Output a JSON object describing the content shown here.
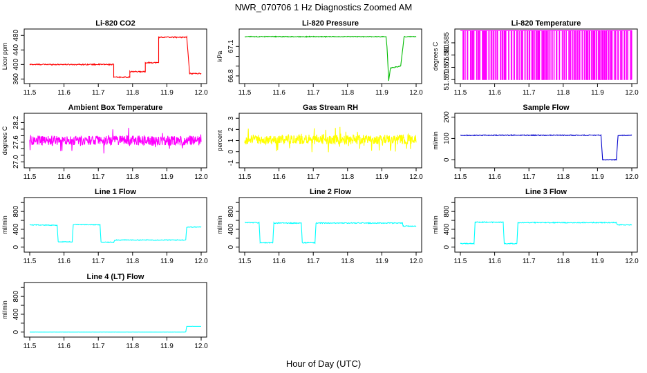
{
  "figure": {
    "title": "NWR_070706  1 Hz Diagnostics Zoomed AM",
    "xlabel": "Hour of Day (UTC)"
  },
  "chart_data": [
    {
      "type": "line",
      "title": "Li-820 CO2",
      "ylabel": "Licor ppm",
      "color": "#ff0000",
      "xlim": [
        11.5,
        12.0
      ],
      "xticks": [
        11.5,
        11.6,
        11.7,
        11.8,
        11.9,
        12.0
      ],
      "ylim": [
        355,
        490
      ],
      "yticks": [
        360,
        400,
        440,
        480
      ],
      "series": [
        {
          "x": [
            11.5,
            11.745,
            11.745,
            11.792,
            11.792,
            11.837,
            11.837,
            11.876,
            11.876,
            11.958,
            11.958,
            11.966,
            11.966,
            12.0
          ],
          "y": [
            400,
            400,
            365,
            365,
            380,
            380,
            405,
            405,
            475,
            475,
            475,
            380,
            375,
            375
          ],
          "noise": 1.5
        }
      ]
    },
    {
      "type": "line",
      "title": "Li-820 Pressure",
      "ylabel": "kPa",
      "color": "#00bb00",
      "xlim": [
        11.5,
        12.0
      ],
      "xticks": [
        11.5,
        11.6,
        11.7,
        11.8,
        11.9,
        12.0
      ],
      "ylim": [
        66.75,
        67.25
      ],
      "yticks": [
        66.8,
        66.9,
        67.0,
        67.1
      ],
      "ytick_labels": [
        "66.8",
        "",
        "",
        "67.1"
      ],
      "series": [
        {
          "x": [
            11.5,
            11.912,
            11.915,
            11.92,
            11.92,
            11.925,
            11.925,
            11.955,
            11.965,
            12.0
          ],
          "y": [
            67.2,
            67.2,
            67.1,
            66.75,
            66.75,
            66.88,
            66.88,
            66.9,
            67.2,
            67.2
          ],
          "noise": 0.004
        }
      ]
    },
    {
      "type": "line",
      "title": "Li-820 Temperature",
      "ylabel": "degrees C",
      "color": "#ff00ff",
      "xlim": [
        11.5,
        12.0
      ],
      "xticks": [
        11.5,
        11.6,
        11.7,
        11.8,
        11.9,
        12.0
      ],
      "ylim": [
        51.5695,
        51.5895
      ],
      "yticks": [
        51.57,
        51.575,
        51.58,
        51.585
      ],
      "ytick_labels": [
        "51.570",
        "51.575",
        "51.580",
        "51.585"
      ],
      "series": [
        {
          "kind": "square-toggle",
          "low": 51.57,
          "high": 51.59
        }
      ]
    },
    {
      "type": "line",
      "title": "Ambient Box Temperature",
      "ylabel": "degrees C",
      "color": "#ff00ff",
      "xlim": [
        11.5,
        12.0
      ],
      "xticks": [
        11.5,
        11.6,
        11.7,
        11.8,
        11.9,
        12.0
      ],
      "ylim": [
        26.9,
        28.4
      ],
      "yticks": [
        27.0,
        27.2,
        27.4,
        27.6,
        27.8,
        28.0,
        28.2
      ],
      "ytick_labels": [
        "27.0",
        "",
        "",
        "27.6",
        "",
        "",
        "28.2"
      ],
      "series": [
        {
          "kind": "noise",
          "mean": 27.65,
          "spread": 0.55
        }
      ]
    },
    {
      "type": "line",
      "title": "Gas Stream RH",
      "ylabel": "percent",
      "color": "#ffff00",
      "xlim": [
        11.5,
        12.0
      ],
      "xticks": [
        11.5,
        11.6,
        11.7,
        11.8,
        11.9,
        12.0
      ],
      "ylim": [
        -1.2,
        3.2
      ],
      "yticks": [
        -1,
        0,
        1,
        2,
        3
      ],
      "series": [
        {
          "kind": "noise",
          "mean": 1.1,
          "spread": 1.6
        }
      ]
    },
    {
      "type": "line",
      "title": "Sample Flow",
      "ylabel": "ml/min",
      "color": "#0000cc",
      "xlim": [
        11.5,
        12.0
      ],
      "xticks": [
        11.5,
        11.6,
        11.7,
        11.8,
        11.9,
        12.0
      ],
      "ylim": [
        -25,
        205
      ],
      "yticks": [
        0,
        100,
        200
      ],
      "series": [
        {
          "x": [
            11.5,
            11.91,
            11.915,
            11.955,
            11.96,
            12.0
          ],
          "y": [
            115,
            115,
            0,
            0,
            115,
            115
          ],
          "noise": 2
        }
      ]
    },
    {
      "type": "line",
      "title": "Line 1 Flow",
      "ylabel": "ml/min",
      "color": "#00ffff",
      "xlim": [
        11.5,
        12.0
      ],
      "xticks": [
        11.5,
        11.6,
        11.7,
        11.8,
        11.9,
        12.0
      ],
      "ylim": [
        -50,
        1050
      ],
      "yticks": [
        0,
        200,
        400,
        600,
        800,
        1000
      ],
      "ytick_labels": [
        "0",
        "",
        "400",
        "",
        "800",
        ""
      ],
      "series": [
        {
          "x": [
            11.5,
            11.58,
            11.583,
            11.624,
            11.627,
            11.705,
            11.708,
            11.745,
            11.748,
            11.955,
            11.958,
            12.0
          ],
          "y": [
            500,
            490,
            120,
            120,
            510,
            500,
            110,
            110,
            160,
            160,
            450,
            450
          ],
          "noise": 8
        }
      ]
    },
    {
      "type": "line",
      "title": "Line 2 Flow",
      "ylabel": "ml/min",
      "color": "#00ffff",
      "xlim": [
        11.5,
        12.0
      ],
      "xticks": [
        11.5,
        11.6,
        11.7,
        11.8,
        11.9,
        12.0
      ],
      "ylim": [
        -50,
        1050
      ],
      "yticks": [
        0,
        200,
        400,
        600,
        800,
        1000
      ],
      "ytick_labels": [
        "0",
        "",
        "400",
        "",
        "800",
        ""
      ],
      "series": [
        {
          "x": [
            11.5,
            11.542,
            11.545,
            11.582,
            11.585,
            11.665,
            11.668,
            11.705,
            11.708,
            11.96,
            11.962,
            12.0
          ],
          "y": [
            550,
            550,
            100,
            100,
            540,
            540,
            100,
            100,
            540,
            540,
            470,
            470
          ],
          "noise": 10
        }
      ]
    },
    {
      "type": "line",
      "title": "Line 3 Flow",
      "ylabel": "ml/min",
      "color": "#00ffff",
      "xlim": [
        11.5,
        12.0
      ],
      "xticks": [
        11.5,
        11.6,
        11.7,
        11.8,
        11.9,
        12.0
      ],
      "ylim": [
        -50,
        1050
      ],
      "yticks": [
        0,
        200,
        400,
        600,
        800,
        1000
      ],
      "ytick_labels": [
        "0",
        "",
        "400",
        "",
        "800",
        ""
      ],
      "series": [
        {
          "x": [
            11.5,
            11.54,
            11.543,
            11.625,
            11.628,
            11.665,
            11.668,
            11.955,
            11.958,
            12.0
          ],
          "y": [
            80,
            80,
            560,
            560,
            80,
            80,
            550,
            550,
            500,
            500
          ],
          "noise": 10
        }
      ]
    },
    {
      "type": "line",
      "title": "Line 4 (LT) Flow",
      "ylabel": "ml/min",
      "color": "#00ffff",
      "xlim": [
        11.5,
        12.0
      ],
      "xticks": [
        11.5,
        11.6,
        11.7,
        11.8,
        11.9,
        12.0
      ],
      "ylim": [
        -50,
        1050
      ],
      "yticks": [
        0,
        200,
        400,
        600,
        800,
        1000
      ],
      "ytick_labels": [
        "0",
        "",
        "400",
        "",
        "800",
        ""
      ],
      "series": [
        {
          "x": [
            11.5,
            11.955,
            11.958,
            12.0
          ],
          "y": [
            0,
            0,
            130,
            130
          ],
          "noise": 1
        }
      ]
    }
  ]
}
